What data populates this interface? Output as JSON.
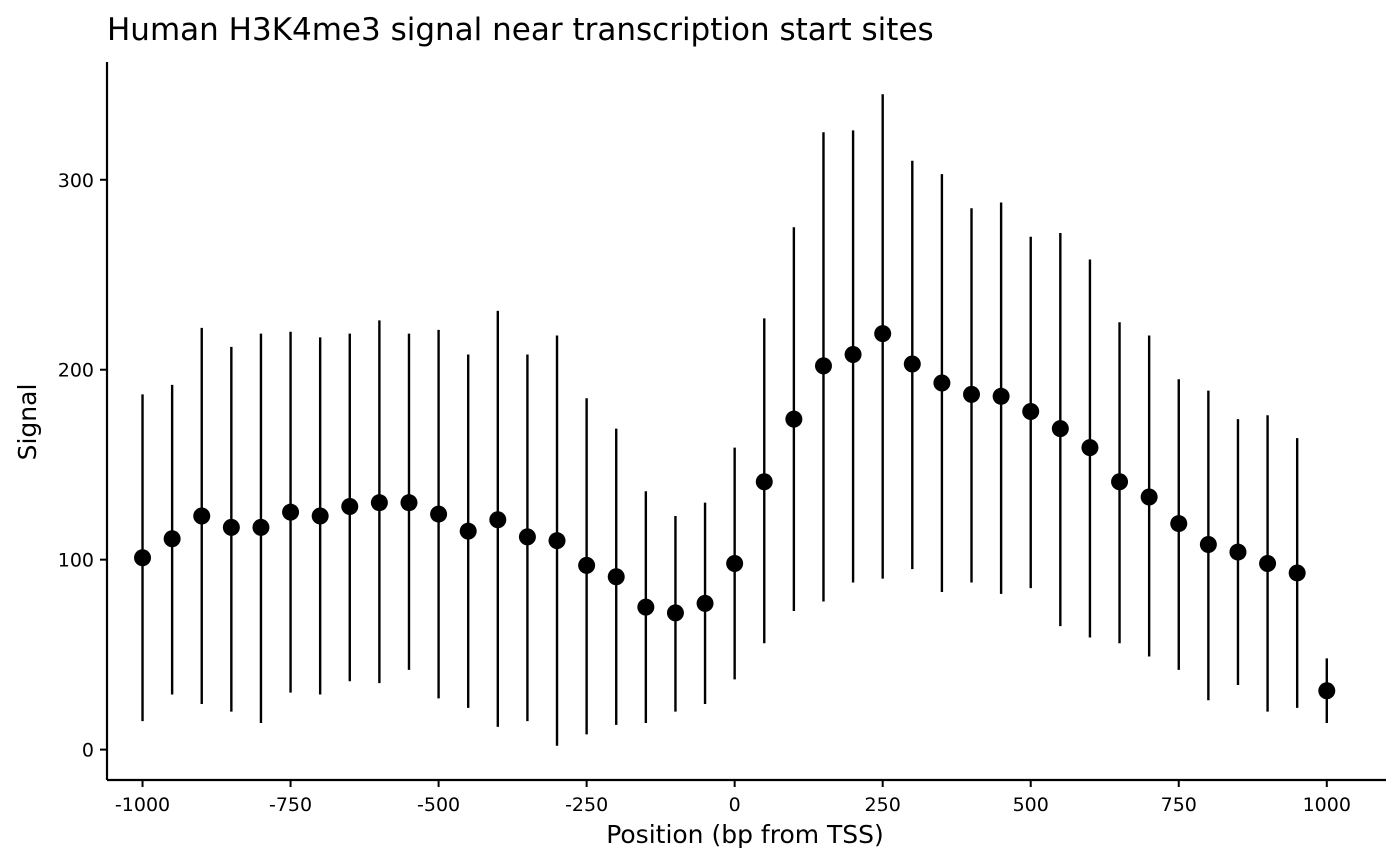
{
  "chart_data": {
    "type": "scatter",
    "title": "Human H3K4me3 signal near transcription start sites",
    "xlabel": "Position (bp from TSS)",
    "ylabel": "Signal",
    "xlim": [
      -1060,
      1100
    ],
    "ylim": [
      -16,
      362
    ],
    "x_ticks": [
      -1000,
      -750,
      -500,
      -250,
      0,
      250,
      500,
      750,
      1000
    ],
    "x_tick_labels": [
      "-1000",
      "-750",
      "-500",
      "-250",
      "0",
      "250",
      "500",
      "750",
      "1000"
    ],
    "y_ticks": [
      0,
      100,
      200,
      300
    ],
    "y_tick_labels": [
      "0",
      "100",
      "200",
      "300"
    ],
    "grid": false,
    "legend": "none",
    "point_color": "#000000",
    "series": [
      {
        "x": [
          -1000,
          -950,
          -900,
          -850,
          -800,
          -750,
          -700,
          -650,
          -600,
          -550,
          -500,
          -450,
          -400,
          -350,
          -300,
          -250,
          -200,
          -150,
          -100,
          -50,
          0,
          50,
          100,
          150,
          200,
          250,
          300,
          350,
          400,
          450,
          500,
          550,
          600,
          650,
          700,
          750,
          800,
          850,
          900,
          950,
          1000
        ],
        "y": [
          101,
          111,
          123,
          117,
          117,
          125,
          123,
          128,
          130,
          130,
          124,
          115,
          121,
          112,
          110,
          97,
          91,
          75,
          72,
          77,
          98,
          141,
          174,
          202,
          208,
          219,
          203,
          193,
          187,
          186,
          178,
          169,
          159,
          141,
          133,
          119,
          108,
          104,
          98,
          93,
          31
        ],
        "ymin": [
          15,
          29,
          24,
          20,
          14,
          30,
          29,
          36,
          35,
          42,
          27,
          22,
          12,
          15,
          2,
          8,
          13,
          14,
          20,
          24,
          37,
          56,
          73,
          78,
          88,
          90,
          95,
          83,
          88,
          82,
          85,
          65,
          59,
          56,
          49,
          42,
          26,
          34,
          20,
          22,
          14
        ],
        "ymax": [
          187,
          192,
          222,
          212,
          219,
          220,
          217,
          219,
          226,
          219,
          221,
          208,
          231,
          208,
          218,
          185,
          169,
          136,
          123,
          130,
          159,
          227,
          275,
          325,
          326,
          345,
          310,
          303,
          285,
          288,
          270,
          272,
          258,
          225,
          218,
          195,
          189,
          174,
          176,
          164,
          48
        ]
      }
    ]
  }
}
